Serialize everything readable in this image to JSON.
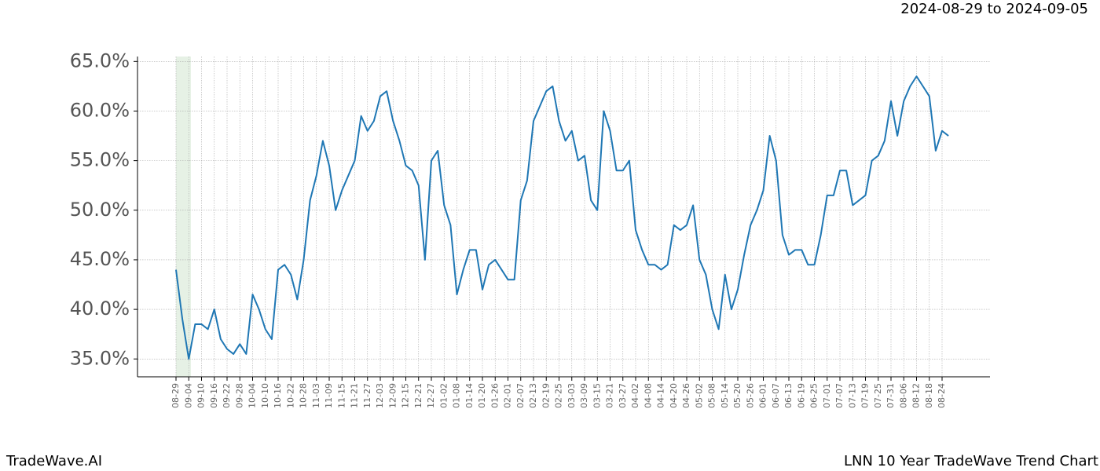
{
  "chart_data": {
    "type": "line",
    "date_range": "2024-08-29 to 2024-09-05",
    "brand": "TradeWave.AI",
    "title": "LNN 10 Year TradeWave Trend Chart",
    "highlight": [
      "08-29",
      "09-05"
    ],
    "highlight_color": "#d5e8d4",
    "color": "#1f77b4",
    "grid": true,
    "x": [
      "08-29",
      "09-01",
      "09-04",
      "09-07",
      "09-10",
      "09-13",
      "09-16",
      "09-19",
      "09-22",
      "09-25",
      "09-28",
      "10-01",
      "10-04",
      "10-07",
      "10-10",
      "10-13",
      "10-16",
      "10-19",
      "10-22",
      "10-25",
      "10-28",
      "10-31",
      "11-03",
      "11-06",
      "11-09",
      "11-12",
      "11-15",
      "11-18",
      "11-21",
      "11-24",
      "11-27",
      "11-30",
      "12-03",
      "12-06",
      "12-09",
      "12-12",
      "12-15",
      "12-18",
      "12-21",
      "12-24",
      "12-27",
      "12-30",
      "01-02",
      "01-05",
      "01-08",
      "01-11",
      "01-14",
      "01-17",
      "01-20",
      "01-23",
      "01-26",
      "01-29",
      "02-01",
      "02-04",
      "02-07",
      "02-10",
      "02-13",
      "02-16",
      "02-19",
      "02-22",
      "02-25",
      "02-28",
      "03-03",
      "03-06",
      "03-09",
      "03-12",
      "03-15",
      "03-18",
      "03-21",
      "03-24",
      "03-27",
      "03-30",
      "04-02",
      "04-05",
      "04-08",
      "04-11",
      "04-14",
      "04-17",
      "04-20",
      "04-23",
      "04-26",
      "04-29",
      "05-02",
      "05-05",
      "05-08",
      "05-11",
      "05-14",
      "05-17",
      "05-20",
      "05-23",
      "05-26",
      "05-29",
      "06-01",
      "06-04",
      "06-07",
      "06-10",
      "06-13",
      "06-16",
      "06-19",
      "06-22",
      "06-25",
      "06-28",
      "07-01",
      "07-04",
      "07-07",
      "07-10",
      "07-13",
      "07-16",
      "07-19",
      "07-22",
      "07-25",
      "07-28",
      "07-31",
      "08-03",
      "08-06",
      "08-09",
      "08-12",
      "08-15",
      "08-18",
      "08-21",
      "08-24",
      "08-27"
    ],
    "values": [
      44.0,
      39.0,
      35.0,
      38.5,
      38.5,
      38.0,
      40.0,
      37.0,
      36.0,
      35.5,
      36.5,
      35.5,
      41.5,
      40.0,
      38.0,
      37.0,
      44.0,
      44.5,
      43.5,
      41.0,
      45.0,
      51.0,
      53.5,
      57.0,
      54.5,
      50.0,
      52.0,
      53.5,
      55.0,
      59.5,
      58.0,
      59.0,
      61.5,
      62.0,
      59.0,
      57.0,
      54.5,
      54.0,
      52.5,
      45.0,
      55.0,
      56.0,
      50.5,
      48.5,
      41.5,
      44.0,
      46.0,
      46.0,
      42.0,
      44.5,
      45.0,
      44.0,
      43.0,
      43.0,
      51.0,
      53.0,
      59.0,
      60.5,
      62.0,
      62.5,
      59.0,
      57.0,
      58.0,
      55.0,
      55.5,
      51.0,
      50.0,
      60.0,
      58.0,
      54.0,
      54.0,
      55.0,
      48.0,
      46.0,
      44.5,
      44.5,
      44.0,
      44.5,
      48.5,
      48.0,
      48.5,
      50.5,
      45.0,
      43.5,
      40.0,
      38.0,
      43.5,
      40.0,
      42.0,
      45.5,
      48.5,
      50.0,
      52.0,
      57.5,
      55.0,
      47.5,
      45.5,
      46.0,
      46.0,
      44.5,
      44.5,
      47.5,
      51.5,
      51.5,
      54.0,
      54.0,
      50.5,
      51.0,
      51.5,
      55.0,
      55.5,
      57.0,
      61.0,
      57.5,
      61.0,
      62.5,
      63.5,
      62.5,
      61.5,
      56.0,
      58.0,
      57.5
    ],
    "xticks": [
      "08-29",
      "09-04",
      "09-10",
      "09-16",
      "09-22",
      "09-28",
      "10-04",
      "10-10",
      "10-16",
      "10-22",
      "10-28",
      "11-03",
      "11-09",
      "11-15",
      "11-21",
      "11-27",
      "12-03",
      "12-09",
      "12-15",
      "12-21",
      "12-27",
      "01-02",
      "01-08",
      "01-14",
      "01-20",
      "01-26",
      "02-01",
      "02-07",
      "02-13",
      "02-19",
      "02-25",
      "03-03",
      "03-09",
      "03-15",
      "03-21",
      "03-27",
      "04-02",
      "04-08",
      "04-14",
      "04-20",
      "04-26",
      "05-02",
      "05-08",
      "05-14",
      "05-20",
      "05-26",
      "06-01",
      "06-07",
      "06-13",
      "06-19",
      "06-25",
      "07-01",
      "07-07",
      "07-13",
      "07-19",
      "07-25",
      "07-31",
      "08-06",
      "08-12",
      "08-18",
      "08-24"
    ],
    "ylim": [
      33.2,
      65.5
    ],
    "yticks": [
      {
        "value": 35,
        "label": "35.0%"
      },
      {
        "value": 40,
        "label": "40.0%"
      },
      {
        "value": 45,
        "label": "45.0%"
      },
      {
        "value": 50,
        "label": "50.0%"
      },
      {
        "value": 55,
        "label": "55.0%"
      },
      {
        "value": 60,
        "label": "60.0%"
      },
      {
        "value": 65,
        "label": "65.0%"
      }
    ]
  }
}
